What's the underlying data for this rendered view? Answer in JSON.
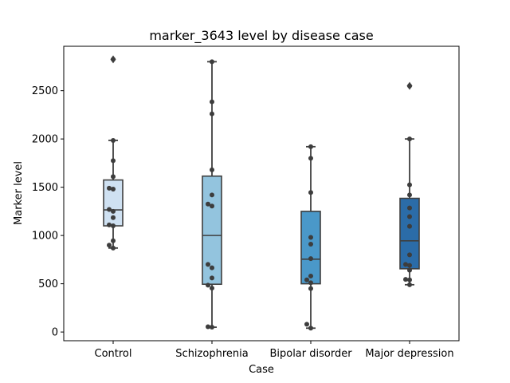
{
  "chart_data": {
    "type": "box",
    "title": "marker_3643 level by disease case",
    "xlabel": "Case",
    "ylabel": "Marker level",
    "ylim": [
      -90,
      2960
    ],
    "yticks": [
      0,
      500,
      1000,
      1500,
      2000,
      2500
    ],
    "categories": [
      "Control",
      "Schizophrenia",
      "Bipolar disorder",
      "Major depression"
    ],
    "grid": false,
    "colors": [
      "#cfe1f2",
      "#93c4de",
      "#4a98c9",
      "#2b6ca8"
    ],
    "boxes": [
      {
        "category": "Control",
        "q1": 1100,
        "median": 1265,
        "q3": 1575,
        "whisker_low": 870,
        "whisker_high": 1985,
        "fliers": [
          2825
        ]
      },
      {
        "category": "Schizophrenia",
        "q1": 495,
        "median": 1000,
        "q3": 1615,
        "whisker_low": 50,
        "whisker_high": 2800,
        "fliers": []
      },
      {
        "category": "Bipolar disorder",
        "q1": 500,
        "median": 755,
        "q3": 1250,
        "whisker_low": 40,
        "whisker_high": 1920,
        "fliers": []
      },
      {
        "category": "Major depression",
        "q1": 655,
        "median": 945,
        "q3": 1385,
        "whisker_low": 490,
        "whisker_high": 2000,
        "fliers": [
          2550
        ]
      }
    ],
    "points": [
      {
        "category": "Control",
        "values": [
          2825,
          1985,
          1775,
          1610,
          1490,
          1480,
          1270,
          1250,
          1185,
          1110,
          1100,
          945,
          900,
          870
        ]
      },
      {
        "category": "Schizophrenia",
        "values": [
          2800,
          2385,
          2260,
          1680,
          1420,
          1325,
          1305,
          700,
          665,
          560,
          485,
          455,
          55,
          50
        ]
      },
      {
        "category": "Bipolar disorder",
        "values": [
          1920,
          1800,
          1445,
          980,
          910,
          760,
          580,
          540,
          510,
          450,
          80,
          40
        ]
      },
      {
        "category": "Major depression",
        "values": [
          2550,
          2000,
          1525,
          1420,
          1285,
          1195,
          1095,
          800,
          700,
          690,
          640,
          545,
          540,
          490
        ]
      }
    ]
  }
}
